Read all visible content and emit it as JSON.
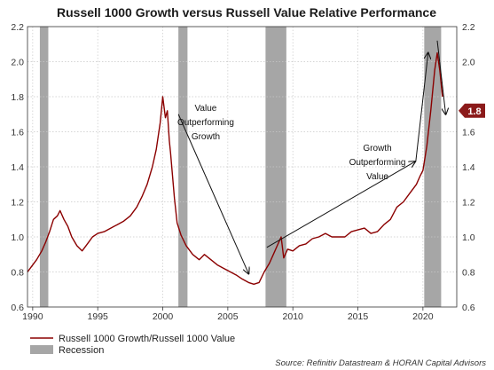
{
  "chart_data": {
    "type": "line",
    "title": "Russell 1000 Growth versus Russell Value Relative Performance",
    "xlabel": "",
    "ylabel": "",
    "xlim": [
      1989.6,
      2022.6
    ],
    "ylim": [
      0.6,
      2.2
    ],
    "x_ticks": [
      "1990",
      "1995",
      "2000",
      "2005",
      "2010",
      "2015",
      "2020"
    ],
    "x_tick_values": [
      1990,
      1995,
      2000,
      2005,
      2010,
      2015,
      2020
    ],
    "y_ticks": [
      "0.6",
      "0.8",
      "1.0",
      "1.2",
      "1.4",
      "1.6",
      "1.8",
      "2.0",
      "2.2"
    ],
    "y_tick_values": [
      0.6,
      0.8,
      1.0,
      1.2,
      1.4,
      1.6,
      1.8,
      2.0,
      2.2
    ],
    "grid": "dotted",
    "series": [
      {
        "name": "Russell 1000 Growth/Russell 1000 Value",
        "color": "#8b0000",
        "x": [
          1989.6,
          1989.9,
          1990.3,
          1990.7,
          1991.0,
          1991.3,
          1991.6,
          1991.9,
          1992.1,
          1992.4,
          1992.7,
          1993.0,
          1993.4,
          1993.8,
          1994.2,
          1994.6,
          1995.0,
          1995.5,
          1996.0,
          1996.5,
          1997.0,
          1997.5,
          1998.0,
          1998.4,
          1998.8,
          1999.2,
          1999.5,
          1999.8,
          2000.0,
          2000.2,
          2000.35,
          2000.5,
          2000.6,
          2000.75,
          2000.9,
          2001.1,
          2001.4,
          2001.8,
          2002.3,
          2002.8,
          2003.2,
          2003.7,
          2004.2,
          2004.7,
          2005.2,
          2005.7,
          2006.1,
          2006.6,
          2007.0,
          2007.4,
          2007.8,
          2008.2,
          2008.5,
          2008.8,
          2009.1,
          2009.3,
          2009.6,
          2010.0,
          2010.5,
          2011.0,
          2011.5,
          2012.0,
          2012.5,
          2013.0,
          2013.5,
          2014.0,
          2014.5,
          2015.0,
          2015.5,
          2016.0,
          2016.5,
          2017.0,
          2017.5,
          2018.0,
          2018.5,
          2019.0,
          2019.5,
          2019.8,
          2020.0,
          2020.3,
          2020.6,
          2020.9,
          2021.1,
          2021.3,
          2021.5
        ],
        "values": [
          0.8,
          0.83,
          0.87,
          0.92,
          0.97,
          1.03,
          1.1,
          1.12,
          1.15,
          1.1,
          1.06,
          1.0,
          0.95,
          0.92,
          0.96,
          1.0,
          1.02,
          1.03,
          1.05,
          1.07,
          1.09,
          1.12,
          1.17,
          1.23,
          1.3,
          1.4,
          1.5,
          1.65,
          1.8,
          1.68,
          1.72,
          1.55,
          1.48,
          1.35,
          1.22,
          1.08,
          1.01,
          0.95,
          0.9,
          0.87,
          0.9,
          0.87,
          0.84,
          0.82,
          0.8,
          0.78,
          0.76,
          0.74,
          0.73,
          0.74,
          0.8,
          0.85,
          0.9,
          0.95,
          1.0,
          0.88,
          0.93,
          0.92,
          0.95,
          0.96,
          0.99,
          1.0,
          1.02,
          1.0,
          1.0,
          1.0,
          1.03,
          1.04,
          1.05,
          1.02,
          1.03,
          1.07,
          1.1,
          1.17,
          1.2,
          1.25,
          1.3,
          1.35,
          1.38,
          1.52,
          1.72,
          1.95,
          2.05,
          1.95,
          1.8
        ]
      }
    ],
    "recessions": [
      [
        1990.55,
        1991.2
      ],
      [
        2001.2,
        2001.9
      ],
      [
        2007.9,
        2009.5
      ],
      [
        2020.1,
        2021.4
      ]
    ],
    "annotations": [
      {
        "lines": [
          "Value",
          "Outperforming",
          "Growth"
        ],
        "x": 2003.3,
        "y": 1.72
      },
      {
        "lines": [
          "Growth",
          "Outperforming",
          "Value"
        ],
        "x": 2016.5,
        "y": 1.49
      }
    ],
    "arrows": [
      {
        "from": [
          2001.2,
          1.7
        ],
        "to": [
          2006.6,
          0.79
        ]
      },
      {
        "from": [
          2008.0,
          0.94
        ],
        "to": [
          2019.4,
          1.43
        ]
      },
      {
        "from": [
          2019.45,
          1.43
        ],
        "to": [
          2020.4,
          2.05
        ]
      },
      {
        "from": [
          2021.1,
          2.12
        ],
        "to": [
          2021.75,
          1.7
        ]
      }
    ],
    "last_value": "1.8",
    "last_value_y": 1.72,
    "legend": {
      "position": "bottom-left",
      "items": [
        {
          "label": "Russell 1000 Growth/Russell 1000 Value",
          "kind": "line",
          "color": "#8b0000"
        },
        {
          "label": "Recession",
          "kind": "box",
          "color": "#a6a6a6"
        }
      ]
    },
    "source": "Source: Refinitiv Datastream & HORAN Capital Advisors",
    "colors": {
      "line": "#8b0000",
      "recession": "#a6a6a6",
      "badge": "#8b1a1a",
      "grid": "#c8c8c8"
    }
  }
}
